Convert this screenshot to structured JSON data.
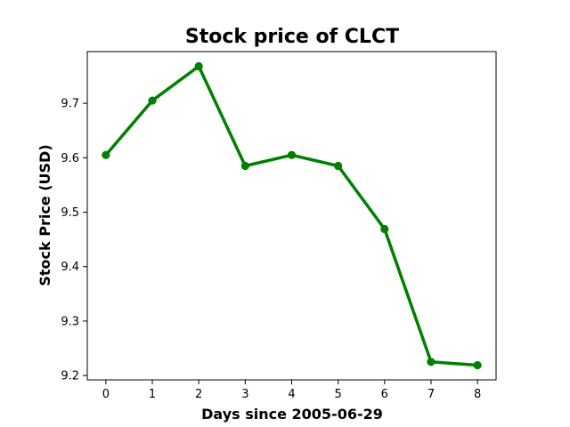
{
  "chart_data": {
    "type": "line",
    "title": "Stock price of CLCT",
    "xlabel": "Days since 2005-06-29",
    "ylabel": "Stock Price (USD)",
    "x": [
      0,
      1,
      2,
      3,
      4,
      5,
      6,
      7,
      8
    ],
    "series": [
      {
        "values": [
          9.605,
          9.705,
          9.768,
          9.585,
          9.605,
          9.585,
          9.469,
          9.225,
          9.219
        ],
        "color": "#008000",
        "marker": "circle"
      }
    ],
    "xticks": [
      "0",
      "1",
      "2",
      "3",
      "4",
      "5",
      "6",
      "7",
      "8"
    ],
    "yticks": [
      "9.2",
      "9.3",
      "9.4",
      "9.5",
      "9.6",
      "9.7"
    ],
    "xlim": [
      -0.4,
      8.4
    ],
    "ylim": [
      9.192,
      9.795
    ],
    "grid": false,
    "legend": "none"
  }
}
